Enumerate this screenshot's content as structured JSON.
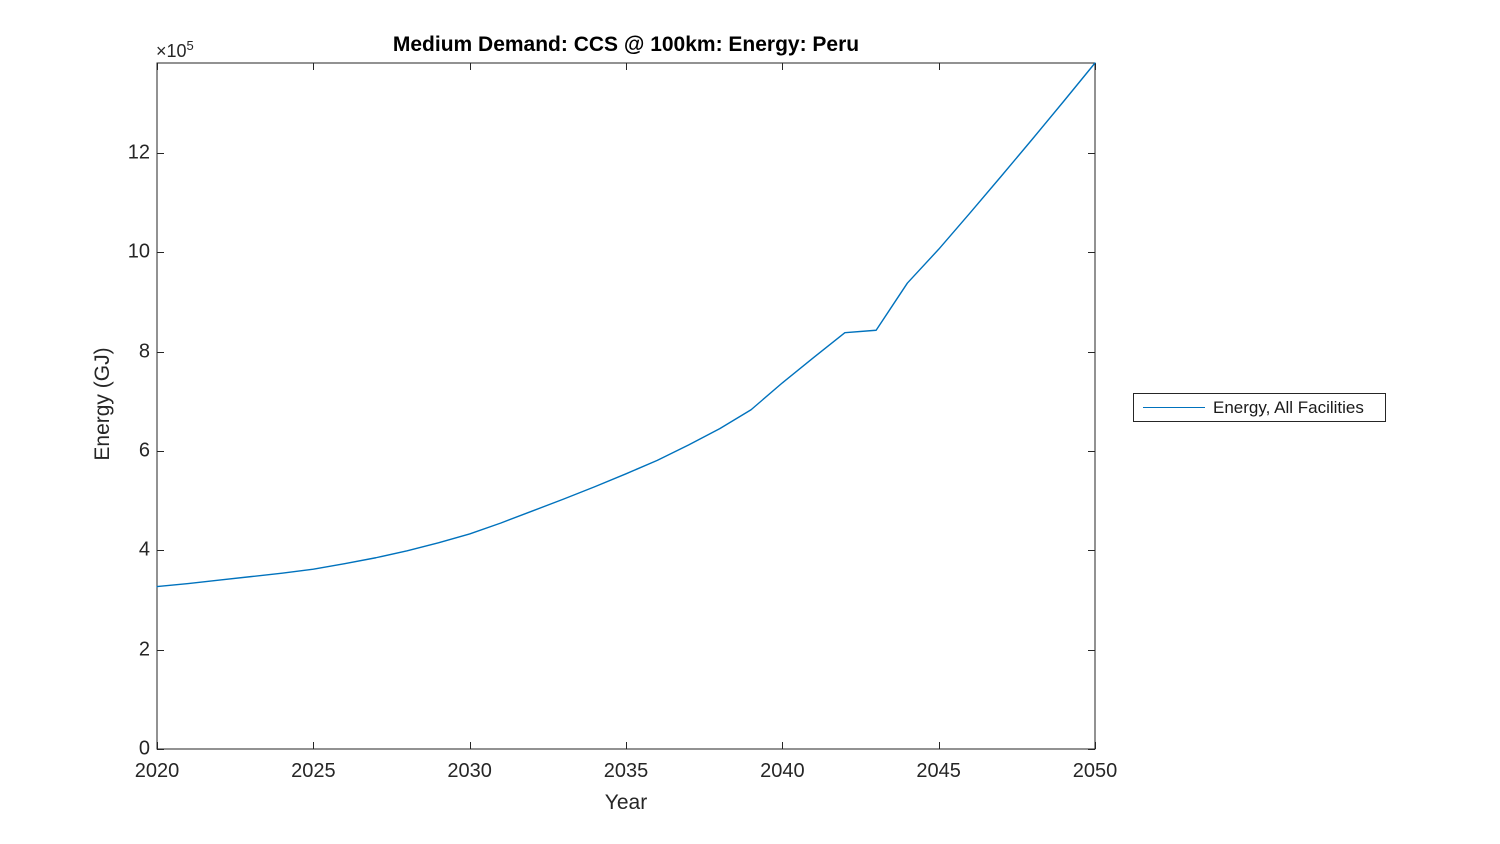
{
  "title": "Medium Demand: CCS @ 100km: Energy: Peru",
  "xlabel": "Year",
  "ylabel": "Energy (GJ)",
  "y_axis_multiplier": {
    "base": "×10",
    "exponent": "5"
  },
  "legend": {
    "label": "Energy, All Facilities"
  },
  "colors": {
    "line": "#0072BD",
    "axis": "#262626",
    "title": "#000000",
    "background": "#ffffff"
  },
  "chart_data": {
    "type": "line",
    "title": "Medium Demand: CCS @ 100km: Energy: Peru",
    "xlabel": "Year",
    "ylabel": "Energy (GJ)",
    "xlim": [
      2020,
      2050
    ],
    "ylim": [
      0,
      1381000
    ],
    "x_ticks": [
      2020,
      2025,
      2030,
      2035,
      2040,
      2045,
      2050
    ],
    "x_tick_labels": [
      "2020",
      "2025",
      "2030",
      "2035",
      "2040",
      "2045",
      "2050"
    ],
    "y_ticks": [
      0,
      200000,
      400000,
      600000,
      800000,
      1000000,
      1200000
    ],
    "y_tick_labels": [
      "0",
      "2",
      "4",
      "6",
      "8",
      "10",
      "12"
    ],
    "y_multiplier": 100000,
    "grid": false,
    "box": true,
    "tick_direction": "in",
    "legend_position": "outside-right",
    "series": [
      {
        "name": "Energy, All Facilities",
        "color": "#0072BD",
        "x": [
          2020,
          2021,
          2022,
          2023,
          2024,
          2025,
          2026,
          2027,
          2028,
          2029,
          2030,
          2031,
          2032,
          2033,
          2034,
          2035,
          2036,
          2037,
          2038,
          2039,
          2040,
          2041,
          2042,
          2043,
          2044,
          2045,
          2046,
          2047,
          2048,
          2049,
          2050
        ],
        "values": [
          327000,
          333000,
          340000,
          347000,
          354000,
          362000,
          373000,
          385000,
          399000,
          415000,
          433000,
          455000,
          479000,
          503000,
          528000,
          554000,
          581000,
          612000,
          645000,
          683000,
          737000,
          788000,
          838000,
          843000,
          938000,
          1006000,
          1079000,
          1153000,
          1228000,
          1304000,
          1381000
        ]
      }
    ]
  }
}
